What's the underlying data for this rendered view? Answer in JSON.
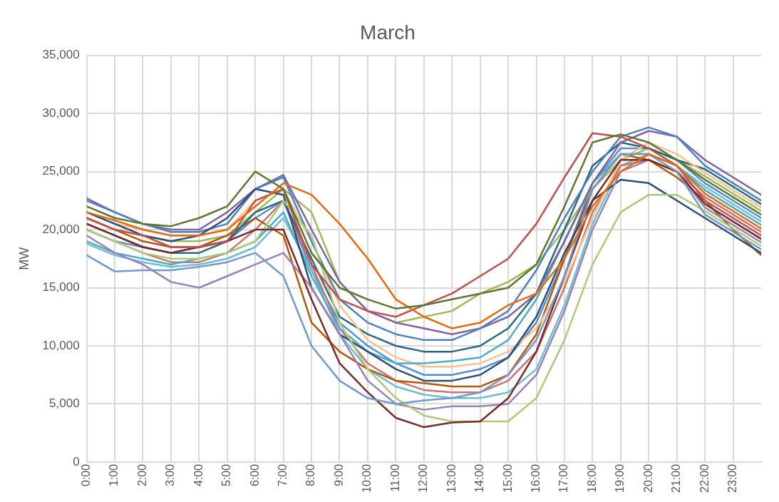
{
  "chart_data": {
    "type": "line",
    "title": "March",
    "ylabel": "MW",
    "x": [
      0,
      1,
      2,
      3,
      4,
      5,
      6,
      7,
      8,
      9,
      10,
      11,
      12,
      13,
      14,
      15,
      16,
      17,
      18,
      19,
      20,
      21,
      22,
      23,
      24
    ],
    "xlim": [
      0,
      24
    ],
    "xticks": [
      {
        "value": 0,
        "label": "0:00"
      },
      {
        "value": 1,
        "label": "1:00"
      },
      {
        "value": 2,
        "label": "2:00"
      },
      {
        "value": 3,
        "label": "3:00"
      },
      {
        "value": 4,
        "label": "4:00"
      },
      {
        "value": 5,
        "label": "5:00"
      },
      {
        "value": 6,
        "label": "6:00"
      },
      {
        "value": 7,
        "label": "7:00"
      },
      {
        "value": 8,
        "label": "8:00"
      },
      {
        "value": 9,
        "label": "9:00"
      },
      {
        "value": 10,
        "label": "10:00"
      },
      {
        "value": 11,
        "label": "11:00"
      },
      {
        "value": 12,
        "label": "12:00"
      },
      {
        "value": 13,
        "label": "13:00"
      },
      {
        "value": 14,
        "label": "14:00"
      },
      {
        "value": 15,
        "label": "15:00"
      },
      {
        "value": 16,
        "label": "16:00"
      },
      {
        "value": 17,
        "label": "17:00"
      },
      {
        "value": 18,
        "label": "18:00"
      },
      {
        "value": 19,
        "label": "19:00"
      },
      {
        "value": 20,
        "label": "20:00"
      },
      {
        "value": 21,
        "label": "21:00"
      },
      {
        "value": 22,
        "label": "22:00"
      },
      {
        "value": 23,
        "label": "23:00"
      }
    ],
    "ylim": [
      0,
      35000
    ],
    "yticks": [
      {
        "value": 0,
        "label": "0"
      },
      {
        "value": 5000,
        "label": "5,000"
      },
      {
        "value": 10000,
        "label": "10,000"
      },
      {
        "value": 15000,
        "label": "15,000"
      },
      {
        "value": 20000,
        "label": "20,000"
      },
      {
        "value": 25000,
        "label": "25,000"
      },
      {
        "value": 30000,
        "label": "30,000"
      },
      {
        "value": 35000,
        "label": "35,000"
      }
    ],
    "grid": true,
    "legend": false,
    "marker": "none",
    "line_style": "solid",
    "series": [
      {
        "color": "#5f7530",
        "values": [
          22000,
          21000,
          20500,
          20300,
          21000,
          22000,
          25000,
          23500,
          18000,
          15000,
          14000,
          13200,
          13500,
          14000,
          14500,
          15000,
          17000,
          22000,
          27500,
          28200,
          27500,
          26000,
          24300,
          22800,
          21300
        ]
      },
      {
        "color": "#e46c0a",
        "values": [
          21500,
          20800,
          20000,
          19500,
          19500,
          20000,
          22000,
          24000,
          23000,
          20500,
          17500,
          14000,
          12500,
          11500,
          12000,
          13500,
          14500,
          17500,
          22000,
          25000,
          26500,
          25500,
          23100,
          21600,
          20100
        ]
      },
      {
        "color": "#c0504d",
        "values": [
          21000,
          20000,
          19500,
          18500,
          18500,
          19000,
          22500,
          23500,
          17000,
          14000,
          13000,
          12500,
          13500,
          14500,
          16000,
          17500,
          20500,
          24500,
          28300,
          28000,
          27000,
          25500,
          22500,
          21000,
          19500
        ]
      },
      {
        "color": "#729aca",
        "values": [
          17800,
          16400,
          16500,
          16500,
          16800,
          17200,
          18000,
          16000,
          10000,
          7000,
          5500,
          5000,
          5300,
          5500,
          6000,
          7500,
          10500,
          16000,
          23500,
          26500,
          26500,
          25000,
          21300,
          19800,
          18300
        ]
      },
      {
        "color": "#772c2a",
        "values": [
          20500,
          19500,
          18500,
          18000,
          18500,
          19000,
          20000,
          20000,
          14000,
          8500,
          6000,
          3800,
          3000,
          3400,
          3500,
          5500,
          9500,
          16000,
          22500,
          26000,
          26000,
          25000,
          22200,
          20700,
          19200
        ]
      },
      {
        "color": "#afc97a",
        "values": [
          20000,
          19000,
          18000,
          17500,
          17500,
          18000,
          19000,
          22500,
          19500,
          12000,
          8000,
          5500,
          4000,
          3500,
          3500,
          3500,
          5500,
          10500,
          17000,
          21500,
          23000,
          23000,
          21600,
          20100,
          18600
        ]
      },
      {
        "color": "#9983b5",
        "values": [
          19500,
          18000,
          17000,
          15500,
          15000,
          16000,
          17000,
          18000,
          15000,
          11000,
          7000,
          5000,
          4500,
          4800,
          4800,
          5000,
          7500,
          13000,
          20000,
          25000,
          26000,
          25000,
          21900,
          20400,
          18900
        ]
      },
      {
        "color": "#2c4d75",
        "values": [
          21500,
          20500,
          19500,
          19000,
          19500,
          21000,
          23500,
          23000,
          15000,
          11000,
          9500,
          8000,
          7000,
          7000,
          7500,
          9000,
          12500,
          18000,
          22500,
          24300,
          24000,
          22500,
          21000,
          19500,
          18000
        ]
      },
      {
        "color": "#4f81bd",
        "values": [
          22500,
          21500,
          20500,
          19800,
          19800,
          20500,
          23500,
          24500,
          19000,
          14000,
          12000,
          11000,
          10500,
          10500,
          11500,
          13000,
          16500,
          21000,
          25000,
          28000,
          28800,
          28000,
          25500,
          24000,
          22500
        ]
      },
      {
        "color": "#8064a2",
        "values": [
          22700,
          21500,
          20500,
          20000,
          20000,
          21500,
          23500,
          24700,
          20000,
          15500,
          13000,
          12000,
          11500,
          11000,
          11500,
          12500,
          14500,
          19000,
          24000,
          27500,
          28500,
          28000,
          26000,
          24500,
          23000
        ]
      },
      {
        "color": "#4bacc6",
        "values": [
          19000,
          18000,
          17500,
          17000,
          17500,
          18000,
          19000,
          21500,
          16000,
          11500,
          9500,
          8500,
          8500,
          8700,
          9000,
          10500,
          14000,
          19000,
          24000,
          26500,
          26500,
          25500,
          23400,
          21900,
          20400
        ]
      },
      {
        "color": "#fac090",
        "values": [
          21500,
          20500,
          20000,
          19500,
          19500,
          20000,
          22500,
          23500,
          19000,
          13500,
          10500,
          9000,
          8200,
          8200,
          8500,
          9500,
          11500,
          15500,
          21000,
          26000,
          27500,
          26500,
          24900,
          23400,
          21900
        ]
      },
      {
        "color": "#276a7c",
        "values": [
          20500,
          19500,
          18500,
          18000,
          18000,
          19000,
          21500,
          22500,
          17500,
          12500,
          11000,
          10000,
          9500,
          9500,
          10000,
          11500,
          14500,
          20000,
          25500,
          27500,
          27000,
          26000,
          25200,
          23700,
          22200
        ]
      },
      {
        "color": "#b65708",
        "values": [
          21000,
          20000,
          19000,
          18500,
          18500,
          19500,
          21000,
          19500,
          12000,
          9500,
          8000,
          7000,
          6800,
          6500,
          6500,
          7500,
          11000,
          17500,
          23500,
          26500,
          26000,
          24500,
          22500,
          20000,
          17800
        ]
      },
      {
        "color": "#cd7371",
        "values": [
          20000,
          19000,
          18000,
          17200,
          17200,
          18000,
          20000,
          22500,
          17000,
          11500,
          8500,
          7000,
          6200,
          6000,
          6000,
          7000,
          9500,
          15000,
          21500,
          25500,
          26000,
          25000,
          22800,
          21300,
          19800
        ]
      },
      {
        "color": "#6fbdd1",
        "values": [
          18800,
          17800,
          17200,
          16800,
          17000,
          17500,
          18500,
          21000,
          16500,
          11000,
          8000,
          6500,
          5800,
          5500,
          5500,
          6000,
          8000,
          13500,
          20500,
          25500,
          26500,
          25500,
          23700,
          22200,
          20700
        ]
      },
      {
        "color": "#9bbb59",
        "values": [
          21000,
          20000,
          19500,
          19000,
          19000,
          19500,
          21500,
          23500,
          21500,
          15500,
          13000,
          12000,
          12500,
          13000,
          14500,
          15500,
          17000,
          20000,
          23500,
          26000,
          27000,
          26000,
          24600,
          23100,
          21600
        ]
      },
      {
        "color": "#558ed5",
        "values": [
          20000,
          19000,
          18500,
          18000,
          18500,
          19000,
          21000,
          22500,
          16500,
          12000,
          10000,
          8500,
          7500,
          7500,
          8000,
          9000,
          12000,
          17500,
          24000,
          27000,
          27000,
          26000,
          24000,
          22500,
          21000
        ]
      }
    ]
  }
}
